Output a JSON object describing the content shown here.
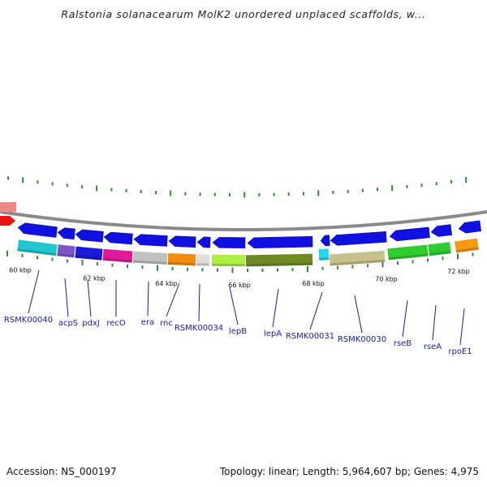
{
  "header": {
    "title": "Ralstonia solanacearum MolK2 unordered unplaced scaffolds, w..."
  },
  "footer": {
    "accession": "Accession: NS_000197",
    "topology": "Topology: linear; Length: 5,964,607 bp; Genes: 4,975"
  },
  "colors": {
    "backbone": "#8a8a8a",
    "tick": "#2e8b2e",
    "arrow": "#1010e0",
    "label": "#1a1aa0",
    "leader": "#1a1aa0"
  },
  "kbp_labels": [
    "60 kbp",
    "62 kbp",
    "64 kbp",
    "66 kbp",
    "68 kbp",
    "70 kbp",
    "72 kbp"
  ],
  "genes": [
    {
      "label": "RSMK00040",
      "color": "#22c8d0"
    },
    {
      "label": "acpS",
      "color": "#7a55c8"
    },
    {
      "label": "pdxJ",
      "color": "#1a1adc"
    },
    {
      "label": "recO",
      "color": "#e0189a"
    },
    {
      "label": "era",
      "color": "#c0c0c0"
    },
    {
      "label": "rnc",
      "color": "#f58a10"
    },
    {
      "label": "RSMK00034",
      "color": "#dddddd"
    },
    {
      "label": "lepB",
      "color": "#aef040"
    },
    {
      "label": "lepA",
      "color": "#6f8a22"
    },
    {
      "label": "RSMK00031",
      "color": "#22d8e8"
    },
    {
      "label": "RSMK00030",
      "color": "#c8c08a"
    },
    {
      "label": "rseB",
      "color": "#2fcc30"
    },
    {
      "label": "rseA",
      "color": "#2fcc30"
    },
    {
      "label": "rpoE1",
      "color": "#f59a10"
    }
  ],
  "left_partials": [
    {
      "color": "#f08888"
    },
    {
      "color": "#ee1111"
    }
  ]
}
